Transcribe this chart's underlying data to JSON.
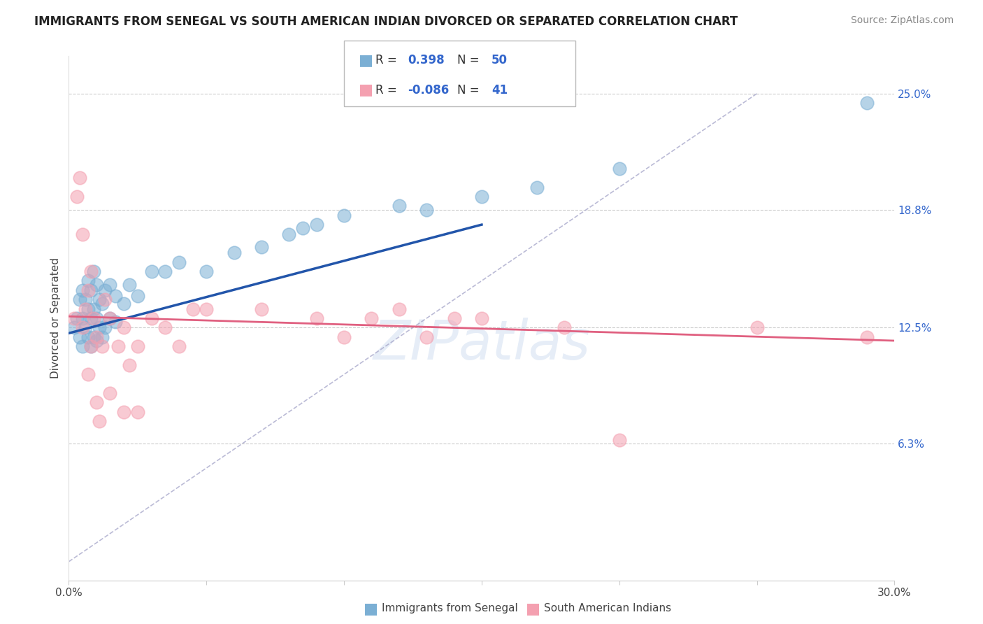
{
  "title": "IMMIGRANTS FROM SENEGAL VS SOUTH AMERICAN INDIAN DIVORCED OR SEPARATED CORRELATION CHART",
  "source": "Source: ZipAtlas.com",
  "ylabel": "Divorced or Separated",
  "xlim": [
    0.0,
    0.3
  ],
  "ylim": [
    -0.01,
    0.27
  ],
  "plot_ylim": [
    -0.01,
    0.27
  ],
  "ytick_vals": [
    0.063,
    0.125,
    0.188,
    0.25
  ],
  "ytick_labels": [
    "6.3%",
    "12.5%",
    "18.8%",
    "25.0%"
  ],
  "series1_color": "#7bafd4",
  "series1_edge": "#5a9abf",
  "series2_color": "#f4a0b0",
  "series2_edge": "#e07090",
  "series1_label": "Immigrants from Senegal",
  "series2_label": "South American Indians",
  "R1": 0.398,
  "N1": 50,
  "R2": -0.086,
  "N2": 41,
  "legend_val_color": "#3366cc",
  "watermark_text": "ZIPatlas",
  "blue_line_color": "#2255aa",
  "pink_line_color": "#e06080",
  "diag_line_color": "#aaaacc",
  "series1_x": [
    0.002,
    0.003,
    0.004,
    0.004,
    0.005,
    0.005,
    0.005,
    0.006,
    0.006,
    0.007,
    0.007,
    0.007,
    0.008,
    0.008,
    0.008,
    0.009,
    0.009,
    0.009,
    0.01,
    0.01,
    0.01,
    0.011,
    0.011,
    0.012,
    0.012,
    0.013,
    0.013,
    0.015,
    0.015,
    0.017,
    0.017,
    0.02,
    0.022,
    0.025,
    0.03,
    0.035,
    0.04,
    0.05,
    0.06,
    0.07,
    0.08,
    0.085,
    0.09,
    0.1,
    0.12,
    0.13,
    0.15,
    0.17,
    0.2,
    0.29
  ],
  "series1_y": [
    0.125,
    0.13,
    0.12,
    0.14,
    0.115,
    0.13,
    0.145,
    0.125,
    0.14,
    0.12,
    0.135,
    0.15,
    0.115,
    0.13,
    0.145,
    0.12,
    0.135,
    0.155,
    0.118,
    0.13,
    0.148,
    0.125,
    0.14,
    0.12,
    0.138,
    0.125,
    0.145,
    0.13,
    0.148,
    0.128,
    0.142,
    0.138,
    0.148,
    0.142,
    0.155,
    0.155,
    0.16,
    0.155,
    0.165,
    0.168,
    0.175,
    0.178,
    0.18,
    0.185,
    0.19,
    0.188,
    0.195,
    0.2,
    0.21,
    0.245
  ],
  "series2_x": [
    0.002,
    0.003,
    0.004,
    0.005,
    0.005,
    0.006,
    0.007,
    0.007,
    0.008,
    0.008,
    0.009,
    0.01,
    0.01,
    0.011,
    0.012,
    0.013,
    0.015,
    0.015,
    0.018,
    0.02,
    0.02,
    0.022,
    0.025,
    0.025,
    0.03,
    0.035,
    0.04,
    0.045,
    0.05,
    0.07,
    0.09,
    0.1,
    0.11,
    0.12,
    0.13,
    0.14,
    0.15,
    0.18,
    0.2,
    0.25,
    0.29
  ],
  "series2_y": [
    0.13,
    0.195,
    0.205,
    0.125,
    0.175,
    0.135,
    0.1,
    0.145,
    0.115,
    0.155,
    0.13,
    0.085,
    0.12,
    0.075,
    0.115,
    0.14,
    0.09,
    0.13,
    0.115,
    0.08,
    0.125,
    0.105,
    0.08,
    0.115,
    0.13,
    0.125,
    0.115,
    0.135,
    0.135,
    0.135,
    0.13,
    0.12,
    0.13,
    0.135,
    0.12,
    0.13,
    0.13,
    0.125,
    0.065,
    0.125,
    0.12
  ],
  "blue_line_x0": 0.0,
  "blue_line_y0": 0.122,
  "blue_line_x1": 0.15,
  "blue_line_y1": 0.18,
  "pink_line_x0": 0.0,
  "pink_line_y0": 0.131,
  "pink_line_x1": 0.3,
  "pink_line_y1": 0.118
}
